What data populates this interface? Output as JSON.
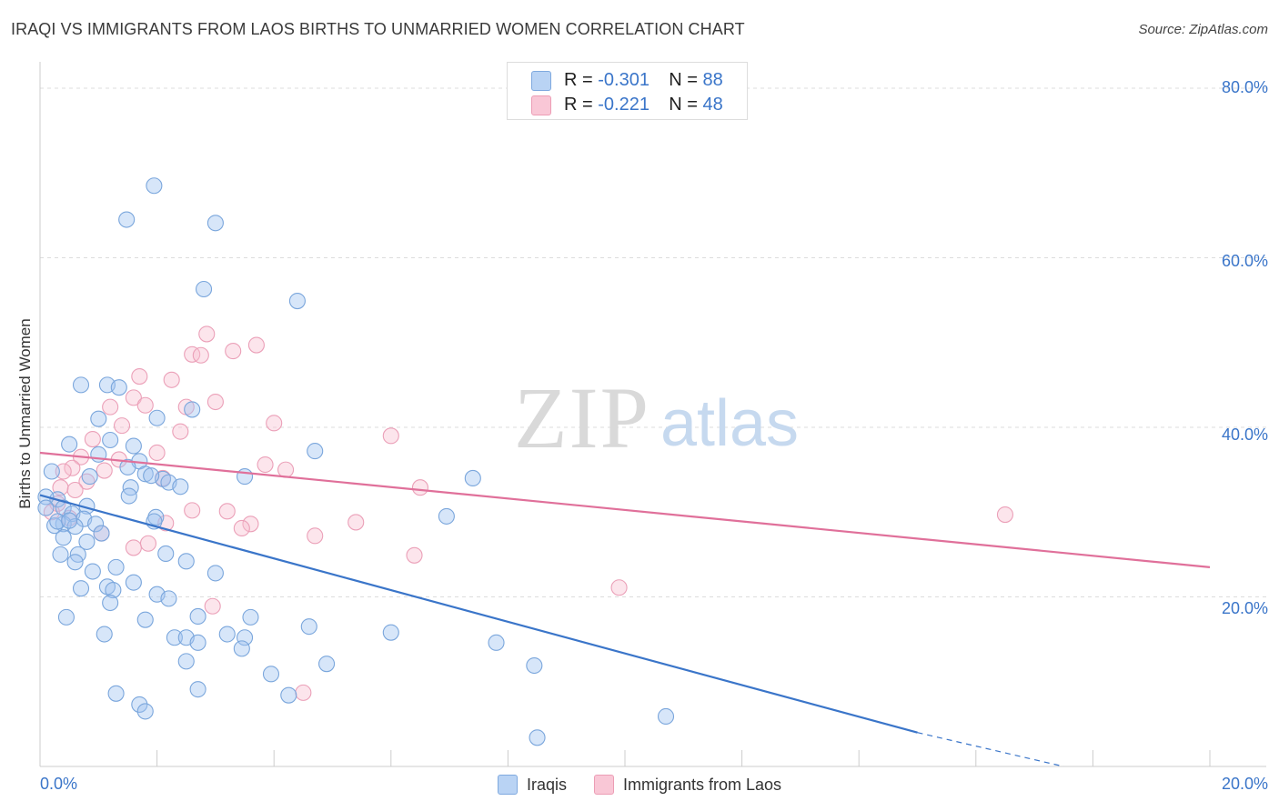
{
  "title": "IRAQI VS IMMIGRANTS FROM LAOS BIRTHS TO UNMARRIED WOMEN CORRELATION CHART",
  "source": "Source: ZipAtlas.com",
  "watermark": {
    "zip": "ZIP",
    "atlas": "atlas"
  },
  "legend": {
    "series1": {
      "r_label": "R =",
      "r_value": "-0.301",
      "n_label": "N =",
      "n_value": "88"
    },
    "series2": {
      "r_label": "R =",
      "r_value": "-0.221",
      "n_label": "N =",
      "n_value": "48"
    }
  },
  "chart_data": {
    "type": "scatter",
    "title": "IRAQI VS IMMIGRANTS FROM LAOS BIRTHS TO UNMARRIED WOMEN CORRELATION CHART",
    "xlabel": "",
    "ylabel": "Births to Unmarried Women",
    "xlim": [
      0,
      20
    ],
    "ylim": [
      0,
      80
    ],
    "x_tick_labels": [
      "0.0%",
      "20.0%"
    ],
    "y_ticks": [
      20,
      40,
      60,
      80
    ],
    "y_tick_labels": [
      "20.0%",
      "40.0%",
      "60.0%",
      "80.0%"
    ],
    "grid": true,
    "colors": {
      "Iraqis": "#3a75c9",
      "Immigrants from Laos": "#e0709a"
    },
    "series": [
      {
        "name": "Iraqis",
        "points": [
          [
            1.95,
            68.5
          ],
          [
            1.48,
            64.5
          ],
          [
            3.0,
            64.1
          ],
          [
            2.8,
            56.3
          ],
          [
            4.4,
            54.9
          ],
          [
            0.7,
            45.0
          ],
          [
            1.15,
            45.0
          ],
          [
            1.35,
            44.7
          ],
          [
            2.6,
            42.1
          ],
          [
            2.0,
            41.1
          ],
          [
            1.0,
            41.0
          ],
          [
            1.2,
            38.5
          ],
          [
            0.5,
            38.0
          ],
          [
            1.6,
            37.8
          ],
          [
            4.7,
            37.2
          ],
          [
            1.0,
            36.8
          ],
          [
            1.7,
            36.0
          ],
          [
            1.5,
            35.3
          ],
          [
            0.2,
            34.8
          ],
          [
            1.8,
            34.5
          ],
          [
            2.1,
            33.9
          ],
          [
            0.85,
            34.2
          ],
          [
            3.5,
            34.2
          ],
          [
            2.2,
            33.5
          ],
          [
            2.4,
            33.0
          ],
          [
            1.55,
            32.9
          ],
          [
            7.4,
            34.0
          ],
          [
            1.52,
            31.9
          ],
          [
            0.3,
            31.5
          ],
          [
            0.1,
            31.8
          ],
          [
            0.4,
            30.5
          ],
          [
            0.8,
            30.7
          ],
          [
            0.55,
            29.8
          ],
          [
            1.98,
            29.4
          ],
          [
            0.75,
            29.2
          ],
          [
            6.95,
            29.5
          ],
          [
            1.95,
            28.9
          ],
          [
            0.95,
            28.6
          ],
          [
            0.4,
            28.6
          ],
          [
            0.6,
            28.3
          ],
          [
            0.25,
            28.4
          ],
          [
            0.3,
            28.9
          ],
          [
            1.05,
            27.5
          ],
          [
            0.4,
            27.0
          ],
          [
            0.8,
            26.5
          ],
          [
            0.35,
            25.0
          ],
          [
            0.65,
            25.0
          ],
          [
            2.15,
            25.1
          ],
          [
            2.5,
            24.2
          ],
          [
            0.6,
            24.1
          ],
          [
            1.6,
            21.7
          ],
          [
            0.7,
            21.0
          ],
          [
            1.15,
            21.2
          ],
          [
            1.25,
            20.8
          ],
          [
            2.0,
            20.3
          ],
          [
            2.2,
            19.8
          ],
          [
            1.2,
            19.3
          ],
          [
            0.45,
            17.6
          ],
          [
            2.7,
            17.7
          ],
          [
            3.6,
            17.6
          ],
          [
            1.8,
            17.3
          ],
          [
            4.6,
            16.5
          ],
          [
            1.1,
            15.6
          ],
          [
            3.2,
            15.6
          ],
          [
            6.0,
            15.8
          ],
          [
            2.3,
            15.2
          ],
          [
            2.5,
            15.2
          ],
          [
            3.5,
            15.2
          ],
          [
            2.7,
            14.6
          ],
          [
            7.8,
            14.6
          ],
          [
            3.45,
            13.9
          ],
          [
            2.5,
            12.4
          ],
          [
            4.9,
            12.1
          ],
          [
            8.45,
            11.9
          ],
          [
            3.95,
            10.9
          ],
          [
            2.7,
            9.1
          ],
          [
            1.3,
            8.6
          ],
          [
            4.25,
            8.4
          ],
          [
            1.7,
            7.3
          ],
          [
            1.8,
            6.5
          ],
          [
            10.7,
            5.9
          ],
          [
            8.5,
            3.4
          ],
          [
            0.1,
            30.5
          ],
          [
            1.9,
            34.3
          ],
          [
            0.5,
            29.0
          ],
          [
            1.3,
            23.5
          ],
          [
            3.0,
            22.8
          ],
          [
            0.9,
            23.0
          ]
        ]
      },
      {
        "name": "Immigrants from Laos",
        "points": [
          [
            2.85,
            51.0
          ],
          [
            3.7,
            49.7
          ],
          [
            3.3,
            49.0
          ],
          [
            2.6,
            48.6
          ],
          [
            2.75,
            48.5
          ],
          [
            1.7,
            46.0
          ],
          [
            2.25,
            45.6
          ],
          [
            1.6,
            43.5
          ],
          [
            3.0,
            43.0
          ],
          [
            1.8,
            42.6
          ],
          [
            1.2,
            42.4
          ],
          [
            2.5,
            42.4
          ],
          [
            1.4,
            40.2
          ],
          [
            4.0,
            40.5
          ],
          [
            2.4,
            39.5
          ],
          [
            6.0,
            39.0
          ],
          [
            0.9,
            38.6
          ],
          [
            0.7,
            36.5
          ],
          [
            2.0,
            37.0
          ],
          [
            1.35,
            36.2
          ],
          [
            0.55,
            35.2
          ],
          [
            3.85,
            35.6
          ],
          [
            4.2,
            35.0
          ],
          [
            1.1,
            34.9
          ],
          [
            0.4,
            34.8
          ],
          [
            2.1,
            34.0
          ],
          [
            0.8,
            33.6
          ],
          [
            0.35,
            32.9
          ],
          [
            0.6,
            32.6
          ],
          [
            6.5,
            32.9
          ],
          [
            0.3,
            31.0
          ],
          [
            2.6,
            30.2
          ],
          [
            3.2,
            30.1
          ],
          [
            0.2,
            30.0
          ],
          [
            16.5,
            29.7
          ],
          [
            5.4,
            28.8
          ],
          [
            3.6,
            28.6
          ],
          [
            2.15,
            28.7
          ],
          [
            3.45,
            28.1
          ],
          [
            1.05,
            27.5
          ],
          [
            4.7,
            27.2
          ],
          [
            1.85,
            26.3
          ],
          [
            1.6,
            25.8
          ],
          [
            6.4,
            24.9
          ],
          [
            9.9,
            21.1
          ],
          [
            2.95,
            18.9
          ],
          [
            4.5,
            8.7
          ],
          [
            0.5,
            29.3
          ]
        ]
      }
    ],
    "trend_lines": [
      {
        "series": "Iraqis",
        "x1": 0.0,
        "y1": 32.0,
        "x2": 15.0,
        "y2": 4.0,
        "dashed_to": [
          17.5,
          0.0
        ]
      },
      {
        "series": "Immigrants from Laos",
        "x1": 0.0,
        "y1": 37.0,
        "x2": 20.0,
        "y2": 23.5
      }
    ]
  }
}
